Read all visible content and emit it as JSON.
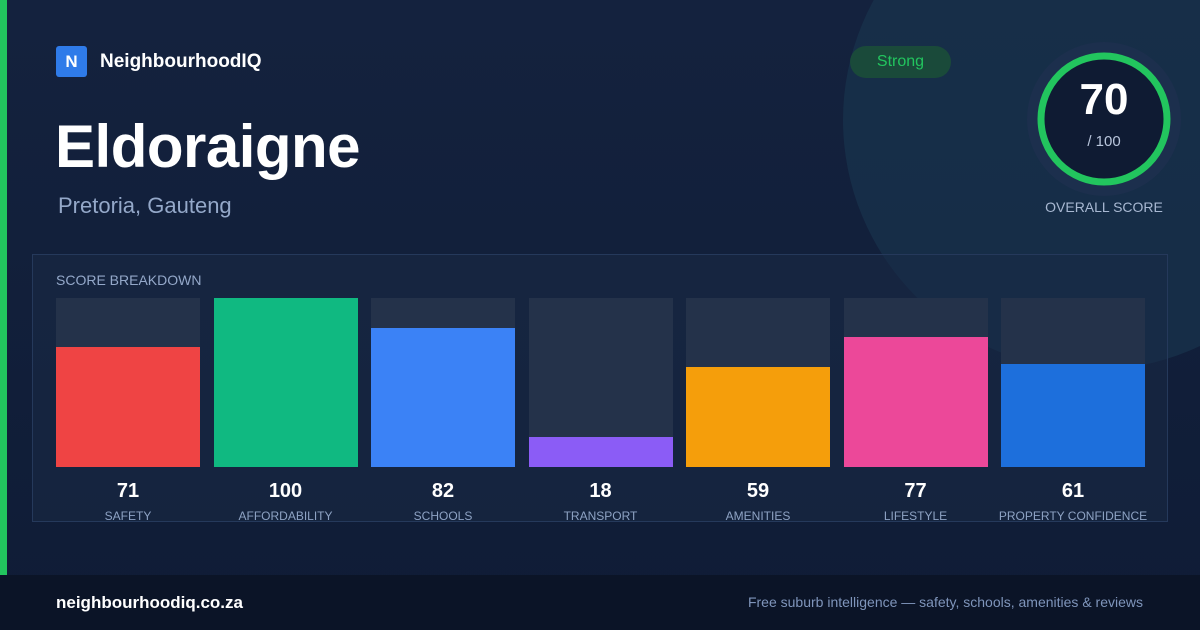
{
  "brand": {
    "logo_letter": "N",
    "name": "NeighbourhoodIQ",
    "color": "#2f7be9"
  },
  "suburb": {
    "name": "Eldoraigne",
    "location": "Pretoria, Gauteng"
  },
  "rating": {
    "tier": "Strong",
    "tier_color": "#22c55e"
  },
  "overall_score": {
    "value": "70",
    "max_label": "/ 100",
    "fraction": 0.7,
    "caption": "OVERALL SCORE",
    "ring_color": "#22c55e"
  },
  "breakdown": {
    "title": "SCORE BREAKDOWN",
    "items": [
      {
        "value": 71,
        "label": "SAFETY",
        "color": "#ef4444"
      },
      {
        "value": 100,
        "label": "AFFORDABILITY",
        "color": "#10b981"
      },
      {
        "value": 82,
        "label": "SCHOOLS",
        "color": "#3b82f6"
      },
      {
        "value": 18,
        "label": "TRANSPORT",
        "color": "#8b5cf6"
      },
      {
        "value": 59,
        "label": "AMENITIES",
        "color": "#f59e0b"
      },
      {
        "value": 77,
        "label": "LIFESTYLE",
        "color": "#ec4899"
      },
      {
        "value": 61,
        "label": "PROPERTY CONFIDENCE",
        "color": "#1d6fdc"
      }
    ]
  },
  "footer": {
    "domain": "neighbourhoodiq.co.za",
    "tagline": "Free suburb intelligence — safety, schools, amenities & reviews"
  }
}
